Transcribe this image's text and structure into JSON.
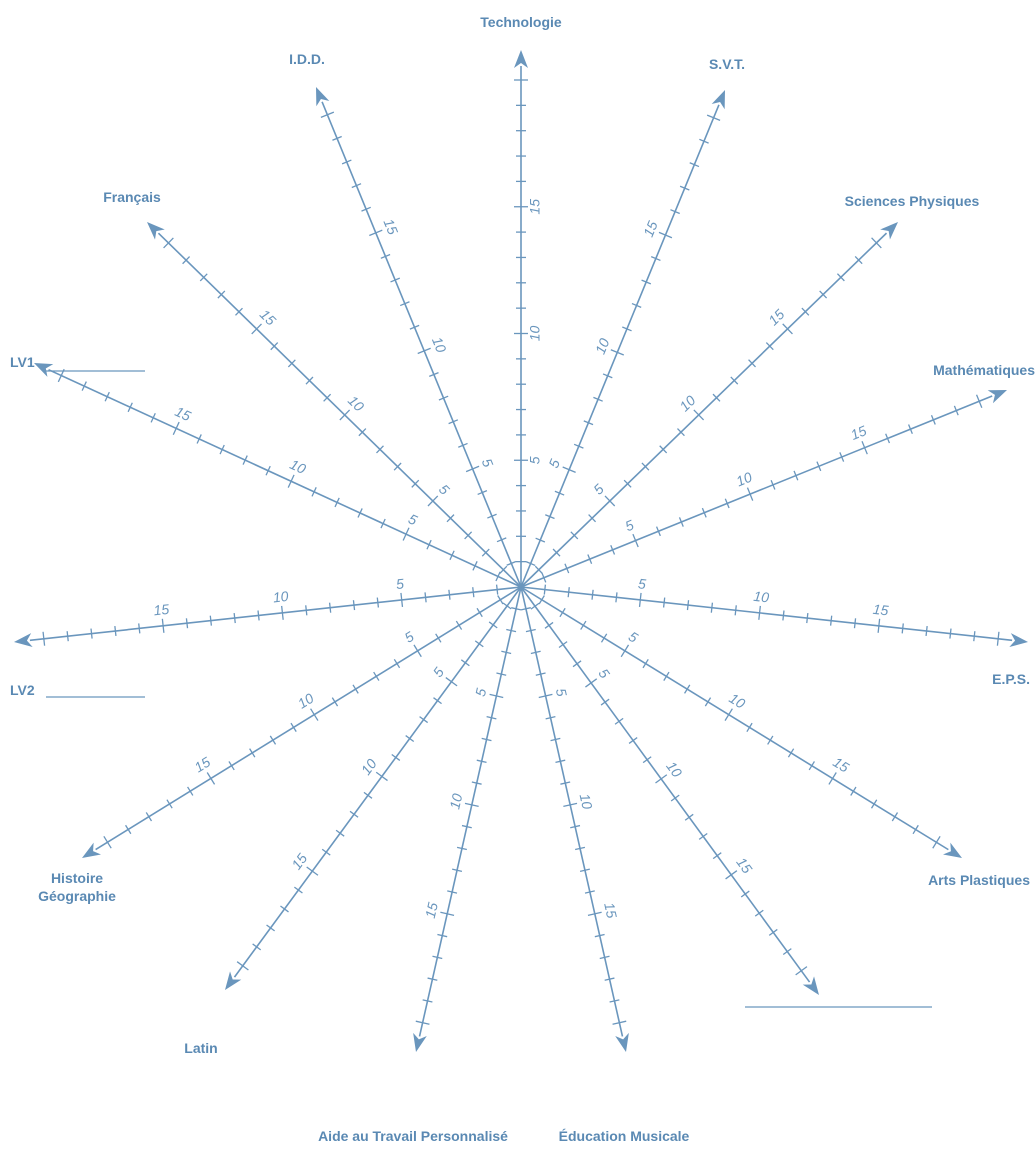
{
  "chart_data": {
    "type": "radar",
    "scale": {
      "min": 0,
      "max": 20,
      "tick_step": 1,
      "labeled_ticks": [
        5,
        10,
        15
      ]
    },
    "axes": [
      {
        "label": "Technologie"
      },
      {
        "label": "S.V.T."
      },
      {
        "label": "Sciences Physiques"
      },
      {
        "label": "Mathématiques"
      },
      {
        "label": "E.P.S."
      },
      {
        "label": "Arts Plastiques"
      },
      {
        "label": ""
      },
      {
        "label": "Éducation Musicale"
      },
      {
        "label": "Aide au Travail Personnalisé"
      },
      {
        "label": "Latin"
      },
      {
        "label": "Histoire\nGéographie"
      },
      {
        "label": "LV2"
      },
      {
        "label": "LV1"
      },
      {
        "label": "Français"
      },
      {
        "label": "I.D.D."
      }
    ],
    "fill_in_label_blanks": [
      "LV1",
      "LV2",
      "bottom-right axis"
    ]
  },
  "colors": {
    "axis": "#6a96bd",
    "label": "#5a89b3",
    "background": "#ffffff"
  }
}
